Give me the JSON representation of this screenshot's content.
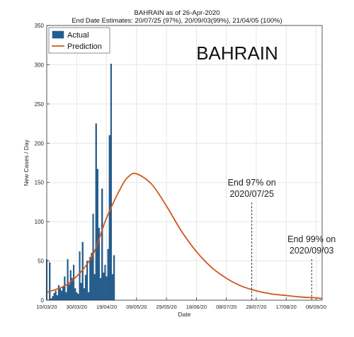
{
  "chart_data": {
    "type": "bar+line",
    "title": "BAHRAIN as of 26-Apr-2020",
    "subtitle": "End Date Estimates: 20/07/25 (97%), 20/09/03(99%), 21/04/05 (100%)",
    "country_label": "BAHRAIN",
    "xlabel": "Date",
    "ylabel": "New Cases / Day",
    "ylim": [
      0,
      350
    ],
    "yticks": [
      0,
      50,
      100,
      150,
      200,
      250,
      300,
      350
    ],
    "xlim": [
      "2020-03-10",
      "2020-09-10"
    ],
    "xtick_labels": [
      "10/03/20",
      "30/03/20",
      "19/04/20",
      "09/05/20",
      "29/05/20",
      "18/06/20",
      "08/07/20",
      "28/07/20",
      "17/08/20",
      "06/09/20"
    ],
    "grid": true,
    "legend_position": "top-left",
    "legend": [
      "Actual",
      "Prediction"
    ],
    "colors": {
      "actual": "#1f5f96",
      "prediction": "#d0561c"
    },
    "actual": {
      "start_date": "2020-03-10",
      "values": [
        52,
        0,
        48,
        2,
        5,
        9,
        12,
        6,
        19,
        15,
        12,
        18,
        30,
        10,
        52,
        20,
        38,
        28,
        45,
        15,
        10,
        8,
        62,
        22,
        74,
        15,
        32,
        50,
        10,
        55,
        60,
        110,
        33,
        225,
        167,
        92,
        28,
        142,
        35,
        45,
        30,
        65,
        210,
        301,
        33,
        57
      ]
    },
    "prediction": {
      "dates": [
        "2020-03-10",
        "2020-03-25",
        "2020-04-09",
        "2020-04-19",
        "2020-04-29",
        "2020-05-04",
        "2020-05-09",
        "2020-05-19",
        "2020-05-29",
        "2020-06-08",
        "2020-06-18",
        "2020-06-28",
        "2020-07-08",
        "2020-07-18",
        "2020-07-28",
        "2020-08-07",
        "2020-08-17",
        "2020-08-27",
        "2020-09-06",
        "2020-09-10"
      ],
      "values": [
        10,
        22,
        55,
        105,
        145,
        158,
        161,
        148,
        120,
        88,
        62,
        42,
        28,
        18,
        12,
        8,
        6,
        4,
        3,
        2
      ]
    },
    "annotations": [
      {
        "date": "2020-07-25",
        "text_line1": "End 97% on",
        "text_line2": "2020/07/25"
      },
      {
        "date": "2020-09-03",
        "text_line1": "End 99% on",
        "text_line2": "2020/09/03"
      }
    ]
  }
}
